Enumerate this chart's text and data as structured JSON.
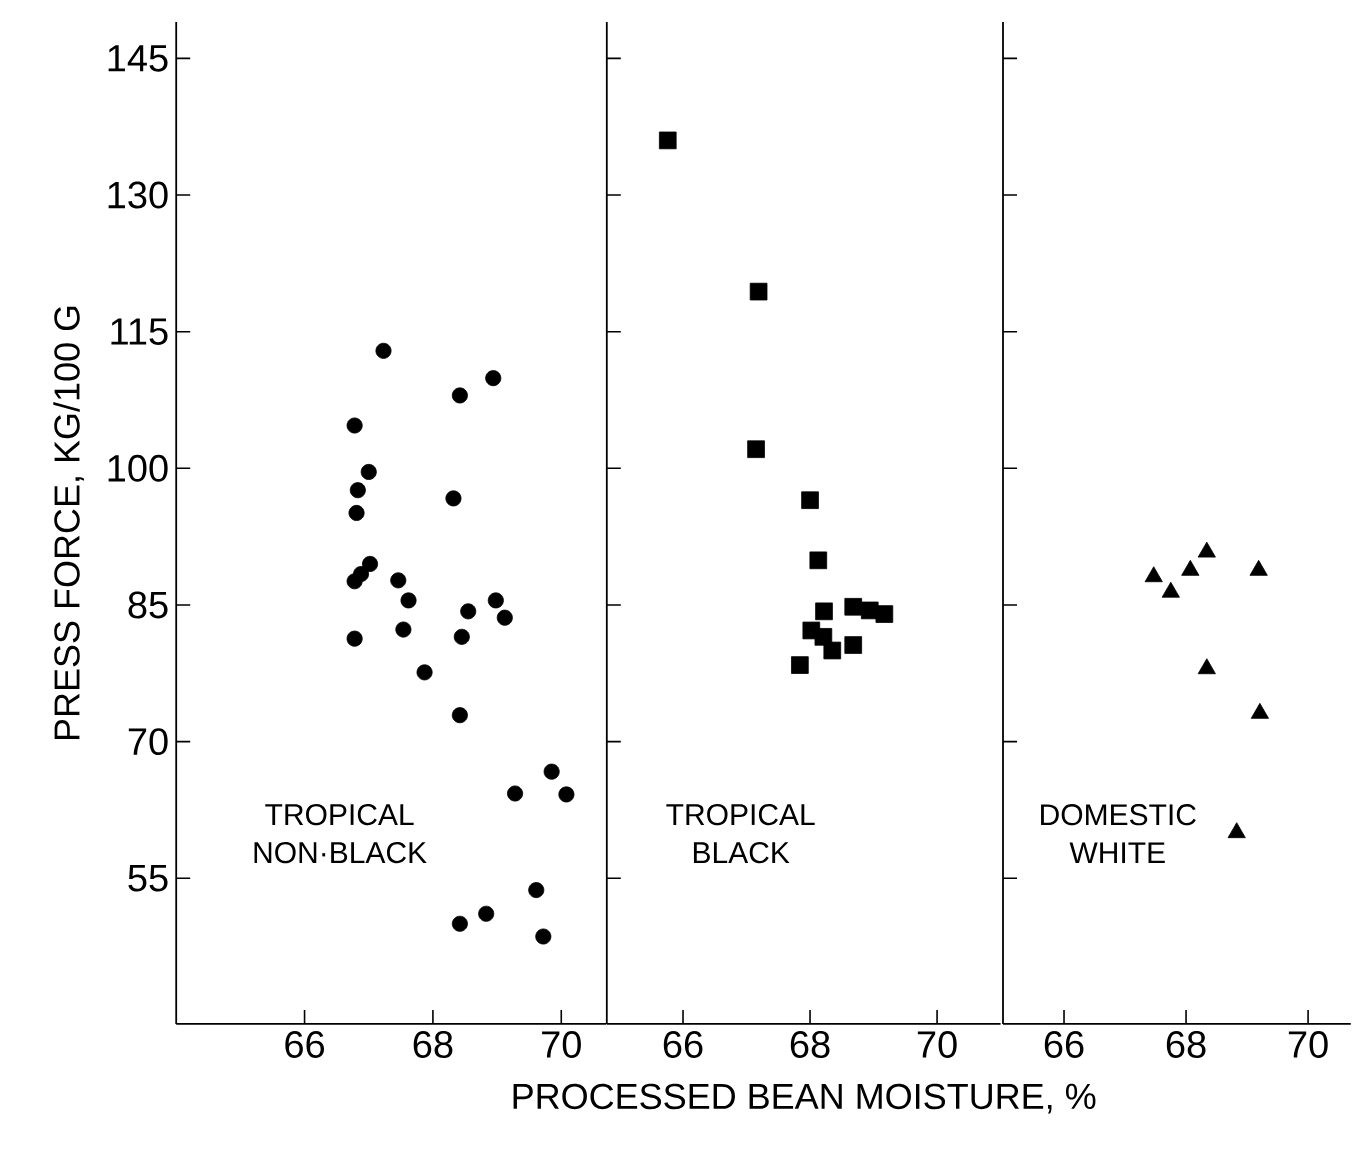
{
  "chart_data": [
    {
      "type": "scatter",
      "ylabel": "PRESS FORCE, KG/100 G",
      "xlim": [
        64.0,
        70.7
      ],
      "xticks": [
        66,
        68,
        70
      ],
      "ylim": [
        39,
        149
      ],
      "yticks": [
        55,
        70,
        85,
        100,
        115,
        130,
        145
      ],
      "marker": "circle",
      "series": [
        {
          "name": "TROPICAL NON·BLACK",
          "color": "#000000",
          "x": [
            67.23,
            68.94,
            68.42,
            66.78,
            67.0,
            66.83,
            66.81,
            68.32,
            66.78,
            66.88,
            67.02,
            67.46,
            67.62,
            67.54,
            66.78,
            68.55,
            68.98,
            69.12,
            68.45,
            67.87,
            68.42,
            69.85,
            69.28,
            70.08,
            69.61,
            68.83,
            68.42,
            69.72
          ],
          "values": [
            112.9,
            109.9,
            108.0,
            104.7,
            99.6,
            97.6,
            95.1,
            96.7,
            87.6,
            88.4,
            89.5,
            87.7,
            85.5,
            82.3,
            81.3,
            84.3,
            85.5,
            83.6,
            81.5,
            77.6,
            72.9,
            66.7,
            64.3,
            64.2,
            53.7,
            51.1,
            50.0,
            48.6
          ]
        }
      ]
    },
    {
      "type": "scatter",
      "xlabel": "PROCESSED BEAN MOISTURE, %",
      "xlim": [
        64.8,
        71.0
      ],
      "xticks": [
        66,
        68,
        70
      ],
      "ylim": [
        39,
        149
      ],
      "yticks": [
        55,
        70,
        85,
        100,
        115,
        130,
        145
      ],
      "tick_labels": "x",
      "marker": "square",
      "series": [
        {
          "name": "TROPICAL BLACK",
          "color": "#000000",
          "x": [
            65.76,
            67.19,
            67.15,
            68.0,
            68.13,
            68.22,
            68.68,
            68.94,
            69.17,
            68.02,
            68.21,
            68.35,
            68.68,
            67.84
          ],
          "values": [
            136.0,
            119.4,
            102.1,
            96.5,
            89.9,
            84.3,
            84.8,
            84.4,
            84.0,
            82.2,
            81.5,
            80.0,
            80.6,
            78.4
          ]
        }
      ]
    },
    {
      "type": "scatter",
      "xlim": [
        65.0,
        70.7
      ],
      "xticks": [
        66,
        68,
        70
      ],
      "ylim": [
        39,
        149
      ],
      "yticks": [
        55,
        70,
        85,
        100,
        115,
        130,
        145
      ],
      "tick_labels": "x",
      "marker": "triangle",
      "series": [
        {
          "name": "DOMESTIC WHITE",
          "color": "#000000",
          "x": [
            68.34,
            68.07,
            67.47,
            67.75,
            69.19,
            68.34,
            69.21,
            68.83
          ],
          "values": [
            90.8,
            88.8,
            88.1,
            86.4,
            88.8,
            78.0,
            73.1,
            60.0
          ]
        }
      ]
    }
  ]
}
